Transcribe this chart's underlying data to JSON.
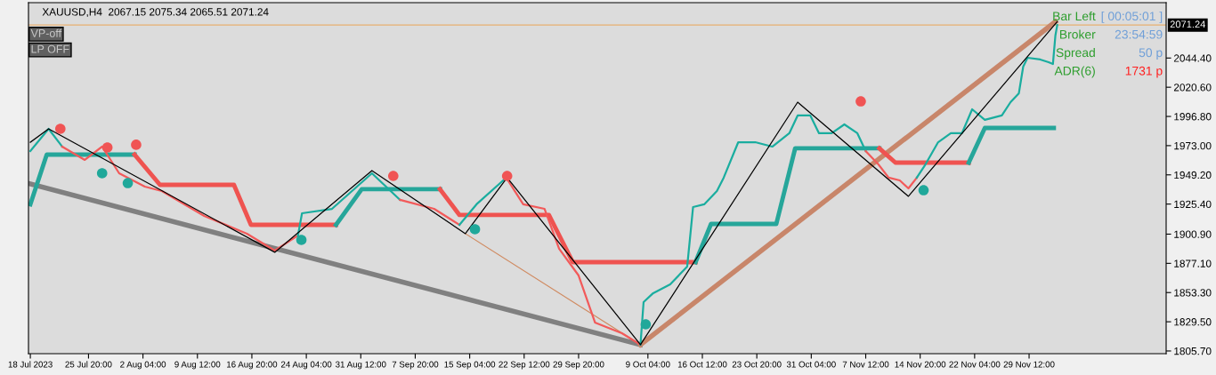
{
  "chart_data": {
    "type": "line",
    "title": "XAUUSD,H4  2067.15 2075.34 2065.51 2071.24",
    "xlim": [
      "2023-07-17T18:00",
      "2023-12-17T23:00"
    ],
    "ylim": [
      1803.5,
      2089.5
    ],
    "xticks": [
      {
        "value": "2023-07-18T00:00",
        "label": "18 Jul 2023"
      },
      {
        "value": "2023-07-25T20:00",
        "label": "25 Jul 20:00"
      },
      {
        "value": "2023-08-02T04:00",
        "label": "2 Aug 04:00"
      },
      {
        "value": "2023-08-09T12:00",
        "label": "9 Aug 12:00"
      },
      {
        "value": "2023-08-16T20:00",
        "label": "16 Aug 20:00"
      },
      {
        "value": "2023-08-24T04:00",
        "label": "24 Aug 04:00"
      },
      {
        "value": "2023-08-31T12:00",
        "label": "31 Aug 12:00"
      },
      {
        "value": "2023-09-07T20:00",
        "label": "7 Sep 20:00"
      },
      {
        "value": "2023-09-15T04:00",
        "label": "15 Sep 04:00"
      },
      {
        "value": "2023-09-22T12:00",
        "label": "22 Sep 12:00"
      },
      {
        "value": "2023-09-29T20:00",
        "label": "29 Sep 20:00"
      },
      {
        "value": "2023-10-09T04:00",
        "label": "9 Oct 04:00"
      },
      {
        "value": "2023-10-16T12:00",
        "label": "16 Oct 12:00"
      },
      {
        "value": "2023-10-23T20:00",
        "label": "23 Oct 20:00"
      },
      {
        "value": "2023-10-31T04:00",
        "label": "31 Oct 04:00"
      },
      {
        "value": "2023-11-07T12:00",
        "label": "7 Nov 12:00"
      },
      {
        "value": "2023-11-14T20:00",
        "label": "14 Nov 20:00"
      },
      {
        "value": "2023-11-22T04:00",
        "label": "22 Nov 04:00"
      },
      {
        "value": "2023-11-29T12:00",
        "label": "29 Nov 12:00"
      }
    ],
    "yticks": [
      {
        "value": 1805.7,
        "label": "1805.70"
      },
      {
        "value": 1829.5,
        "label": "1829.50"
      },
      {
        "value": 1853.3,
        "label": "1853.30"
      },
      {
        "value": 1877.1,
        "label": "1877.10"
      },
      {
        "value": 1900.9,
        "label": "1900.90"
      },
      {
        "value": 1925.4,
        "label": "1925.40"
      },
      {
        "value": 1949.2,
        "label": "1949.20"
      },
      {
        "value": 1973.0,
        "label": "1973.00"
      },
      {
        "value": 1996.8,
        "label": "1996.80"
      },
      {
        "value": 2020.6,
        "label": "2020.60"
      },
      {
        "value": 2044.4,
        "label": "2044.40"
      }
    ],
    "ref_lines": [
      {
        "axis": "y",
        "value": 2071.24,
        "label": "2071.24",
        "color": "#e8b070"
      }
    ],
    "annotations": [
      "VP-off",
      "LP OFF",
      "Bar Left",
      "[ 00:05:01 ]",
      "Broker",
      "23:54:59",
      "Spread",
      "50 p",
      "ADR(6)",
      "1731 p"
    ],
    "series": [
      {
        "color": "#808080",
        "x": [
          "2023-07-18T00:00",
          "2023-10-08T04:00"
        ],
        "values": [
          1941.8,
          1810.8
        ]
      },
      {
        "color": "#c8866a",
        "x": [
          "2023-10-08T04:00",
          "2023-12-03T01:00"
        ],
        "values": [
          1810.8,
          2074
        ]
      },
      {
        "color": "#d08a60",
        "x": [
          "2023-09-14T14:00",
          "2023-10-08T04:00"
        ],
        "values": [
          1901.3,
          1810.8
        ]
      },
      {
        "color": "#26a69a",
        "x": [
          "2023-07-18T00:00",
          "2023-07-20T05:00",
          "2023-08-01T01:00"
        ],
        "values": [
          1925.2,
          1965.7,
          1965.7
        ]
      },
      {
        "color": "#ef5350",
        "x": [
          "2023-08-01T01:00",
          "2023-08-04T11:00",
          "2023-08-14T10:00",
          "2023-08-16T17:00",
          "2023-08-28T04:00"
        ],
        "values": [
          1965.7,
          1941.1,
          1941.1,
          1908.5,
          1908.5
        ]
      },
      {
        "color": "#26a69a",
        "x": [
          "2023-08-28T04:00",
          "2023-08-31T15:00",
          "2023-09-11T04:00"
        ],
        "values": [
          1908.5,
          1937.5,
          1937.5
        ]
      },
      {
        "color": "#ef5350",
        "x": [
          "2023-09-11T04:00",
          "2023-09-13T19:00",
          "2023-09-25T20:00",
          "2023-09-29T01:00",
          "2023-10-15T14:00"
        ],
        "values": [
          1937.5,
          1916.5,
          1916.5,
          1878.1,
          1878.1
        ]
      },
      {
        "color": "#26a69a",
        "x": [
          "2023-10-15T14:00",
          "2023-10-17T16:00",
          "2023-10-26T11:00",
          "2023-10-29T00:00",
          "2023-11-09T08:00"
        ],
        "values": [
          1878.1,
          1909.2,
          1909.2,
          1970.8,
          1970.8
        ]
      },
      {
        "color": "#ef5350",
        "x": [
          "2023-11-09T08:00",
          "2023-11-11T12:00",
          "2023-11-21T09:00"
        ],
        "values": [
          1970.8,
          1959.2,
          1959.2
        ]
      },
      {
        "color": "#26a69a",
        "x": [
          "2023-11-21T09:00",
          "2023-11-23T13:00",
          "2023-12-02T20:00"
        ],
        "values": [
          1959.2,
          1987.4,
          1987.4
        ]
      },
      {
        "color": "#1aad9f",
        "x": [
          "2023-07-18T00:00",
          "2023-07-20T11:00",
          "2023-07-22T07:00"
        ],
        "values": [
          1968.6,
          1986.7,
          1972.2
        ]
      },
      {
        "color": "#f25a5a",
        "x": [
          "2023-07-22T07:00",
          "2023-07-25T08:00",
          "2023-07-27T16:00",
          "2023-07-29T23:00",
          "2023-08-02T10:00",
          "2023-08-04T17:00",
          "2023-08-10T10:00",
          "2023-08-16T04:00",
          "2023-08-19T22:00",
          "2023-08-23T01:00"
        ],
        "values": [
          1972.2,
          1961.4,
          1972.2,
          1950.5,
          1939.6,
          1936.0,
          1915.7,
          1901.3,
          1887.5,
          1899.8
        ]
      },
      {
        "color": "#1aad9f",
        "x": [
          "2023-08-23T01:00",
          "2023-08-23T14:00",
          "2023-08-27T15:00",
          "2023-09-02T00:00",
          "2023-09-05T19:00"
        ],
        "values": [
          1899.8,
          1917.9,
          1921.5,
          1950.5,
          1928.8
        ]
      },
      {
        "color": "#f25a5a",
        "x": [
          "2023-09-05T19:00",
          "2023-09-10T09:00",
          "2023-09-13T19:00"
        ],
        "values": [
          1928.8,
          1921.5,
          1908.5
        ]
      },
      {
        "color": "#1aad9f",
        "x": [
          "2023-09-13T19:00",
          "2023-09-16T02:00",
          "2023-09-20T02:00"
        ],
        "values": [
          1908.5,
          1925.2,
          1946.9
        ]
      },
      {
        "color": "#f25a5a",
        "x": [
          "2023-09-20T02:00",
          "2023-09-22T09:00",
          "2023-09-25T06:00",
          "2023-09-27T05:00",
          "2023-09-29T20:00",
          "2023-10-02T01:00",
          "2023-10-05T16:00",
          "2023-10-08T04:00"
        ],
        "values": [
          1946.9,
          1925.2,
          1921.5,
          1889.0,
          1867.2,
          1828.9,
          1820.2,
          1810.8
        ]
      },
      {
        "color": "#1aad9f",
        "x": [
          "2023-10-08T04:00",
          "2023-10-08T14:00",
          "2023-10-09T21:00",
          "2023-10-12T04:00",
          "2023-10-14T11:00",
          "2023-10-15T06:00",
          "2023-10-16T18:00",
          "2023-10-18T11:00",
          "2023-10-19T09:00",
          "2023-10-21T08:00",
          "2023-10-23T15:00",
          "2023-10-25T22:00",
          "2023-10-28T05:00",
          "2023-10-29T08:00",
          "2023-10-31T01:00",
          "2023-11-01T05:00",
          "2023-11-02T22:00",
          "2023-11-04T15:00",
          "2023-11-06T09:00",
          "2023-11-07T12:00"
        ],
        "values": [
          1810.8,
          1845.5,
          1852.8,
          1860.0,
          1874.5,
          1923.0,
          1925.2,
          1936.0,
          1946.9,
          1975.8,
          1975.8,
          1972.2,
          1983.1,
          1997.6,
          1997.6,
          1983.1,
          1983.1,
          1990.3,
          1983.1,
          1968.6
        ]
      },
      {
        "color": "#f25a5a",
        "x": [
          "2023-11-07T12:00",
          "2023-11-09T05:00",
          "2023-11-10T14:00",
          "2023-11-12T02:00",
          "2023-11-13T06:00",
          "2023-11-14T09:00"
        ],
        "values": [
          1968.6,
          1957.7,
          1946.9,
          1944.7,
          1938.2,
          1946.9
        ]
      },
      {
        "color": "#1aad9f",
        "x": [
          "2023-11-14T09:00",
          "2023-11-15T13:00",
          "2023-11-17T06:00",
          "2023-11-18T23:00",
          "2023-11-20T11:00",
          "2023-11-21T20:00",
          "2023-11-23T13:00",
          "2023-11-25T20:00",
          "2023-11-27T00:00",
          "2023-11-28T03:00",
          "2023-11-28T17:00",
          "2023-11-29T07:00",
          "2023-12-01T00:00",
          "2023-12-02T03:00",
          "2023-12-02T17:00",
          "2023-12-03T01:00",
          "2023-12-03T07:00"
        ],
        "values": [
          1946.9,
          1957.7,
          1975.8,
          1983.1,
          1983.1,
          2002.6,
          1994.0,
          1997.6,
          2008.4,
          2015.7,
          2037.4,
          2044.6,
          2043.2,
          2041.0,
          2039.5,
          2062.7,
          2071.2
        ]
      },
      {
        "color": "#000000",
        "x": [
          "2023-07-18T00:00",
          "2023-07-20T11:00",
          "2023-08-19T22:00",
          "2023-09-02T00:00",
          "2023-09-14T14:00",
          "2023-09-20T05:00",
          "2023-10-08T04:00",
          "2023-10-29T08:00",
          "2023-11-13T06:00",
          "2023-12-03T07:00"
        ],
        "values": [
          1975.8,
          1986.7,
          1886.1,
          1952.7,
          1901.3,
          1946.9,
          1810.8,
          2008.4,
          1931.7,
          2074
        ]
      },
      {
        "type": "scatter",
        "marker": "circle",
        "color": "#f05454",
        "x": [
          "2023-07-22T01:00",
          "2023-07-28T09:00",
          "2023-08-01T06:00",
          "2023-09-04T21:00",
          "2023-09-20T05:00",
          "2023-11-06T20:00"
        ],
        "values": [
          1986.7,
          1971.5,
          1973.7,
          1948.3,
          1948.3,
          2009.1
        ]
      },
      {
        "type": "scatter",
        "marker": "circle",
        "color": "#20a89a",
        "x": [
          "2023-07-27T16:00",
          "2023-07-31T03:00",
          "2023-08-23T12:00",
          "2023-09-15T21:00",
          "2023-10-08T21:00",
          "2023-11-15T07:00"
        ],
        "values": [
          1950.5,
          1942.5,
          1896.2,
          1904.9,
          1827.4,
          1936.7
        ]
      }
    ]
  }
}
